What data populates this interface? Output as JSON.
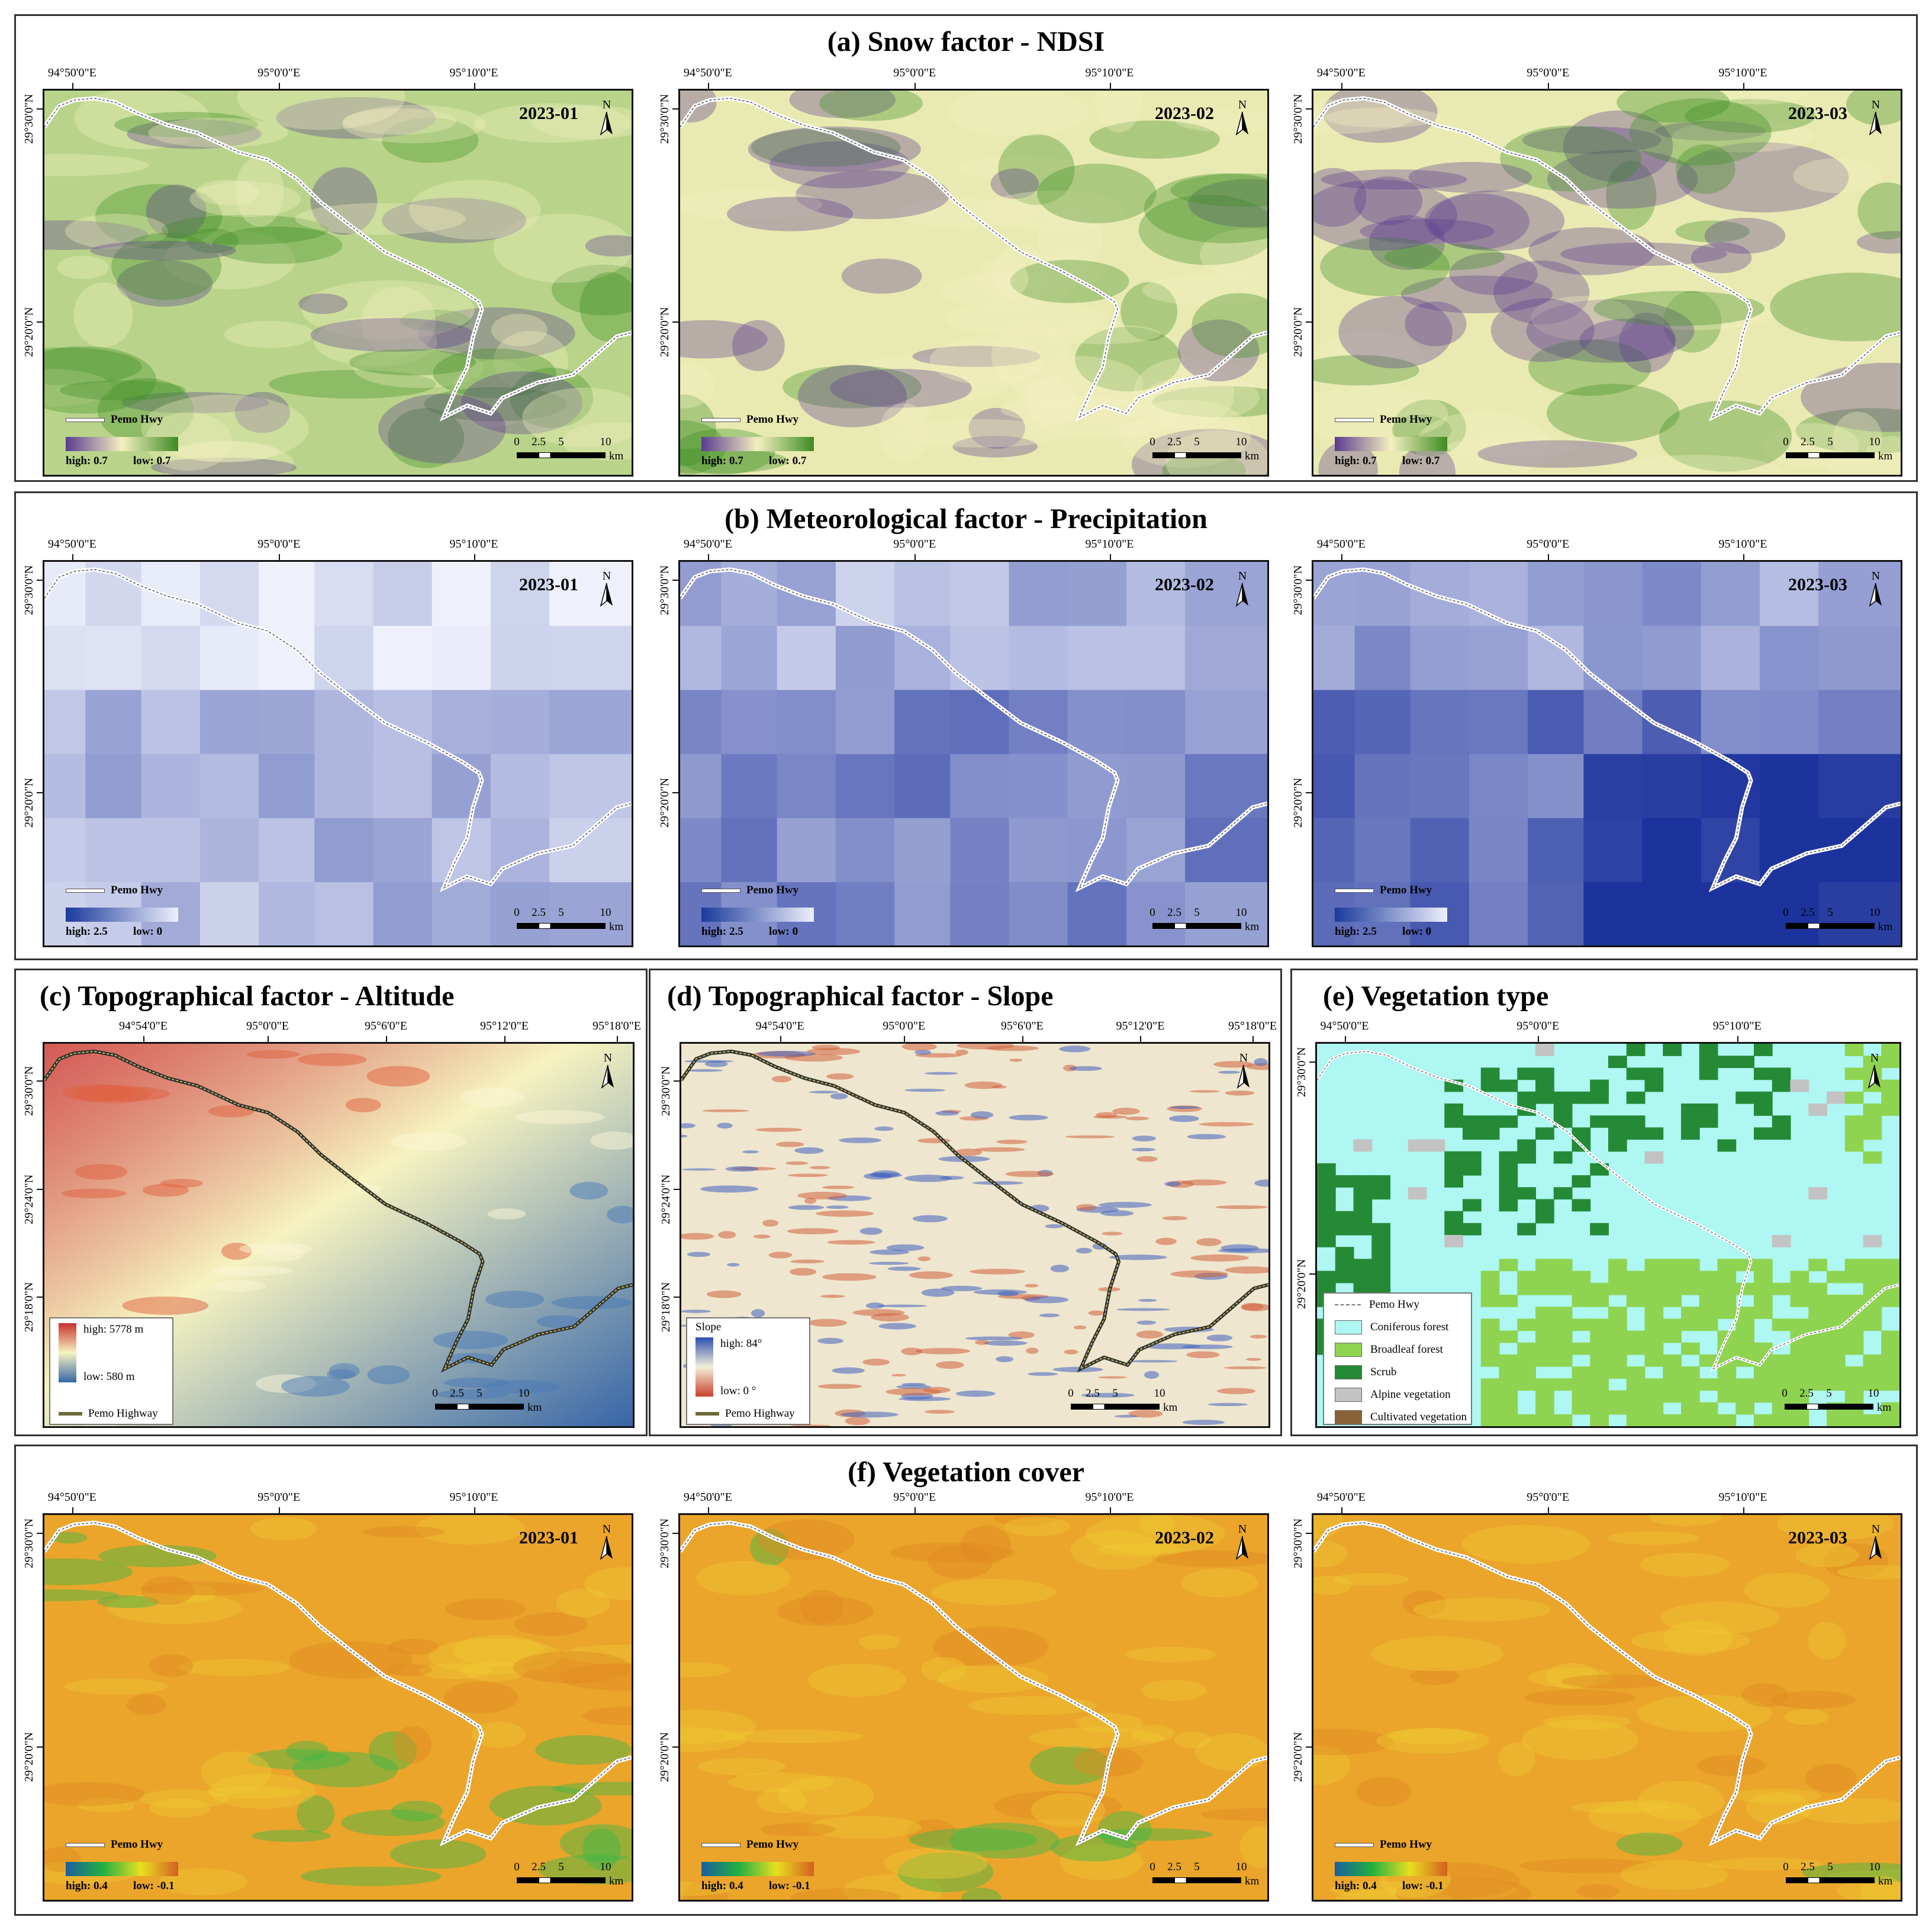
{
  "sections": {
    "a": {
      "title": "(a) Snow factor - NDSI"
    },
    "b": {
      "title": "(b) Meteorological factor - Precipitation"
    },
    "c": {
      "title": "(c) Topographical factor - Altitude"
    },
    "d": {
      "title": "(d) Topographical factor - Slope"
    },
    "e": {
      "title": "(e) Vegetation type"
    },
    "f": {
      "title": "(f) Vegetation cover"
    }
  },
  "common": {
    "lon_labels": [
      "94°50'0\"E",
      "95°0'0\"E",
      "95°10'0\"E"
    ],
    "lat_labels": [
      "29°30'0\"N",
      "29°20'0\"N"
    ],
    "lon_labels_fine": [
      "94°54'0\"E",
      "95°0'0\"E",
      "95°6'0\"E",
      "95°12'0\"E",
      "95°18'0\"E"
    ],
    "lat_labels_fine": [
      "29°30'0\"N",
      "29°24'0\"N",
      "29°18'0\"N"
    ],
    "north": "N",
    "road_short": "Pemo Hwy",
    "road_long": "Pemo Highway",
    "scale_ticks": [
      "0",
      "2.5",
      "5",
      "10"
    ],
    "scale_unit": "km",
    "dates": [
      "2023-01",
      "2023-02",
      "2023-03"
    ]
  },
  "legends": {
    "ndsi": {
      "high": "high: 0.7",
      "low": "low: 0.7",
      "colors": [
        "#5b3c8f",
        "#f4f0c0",
        "#3d8b22"
      ]
    },
    "precip": {
      "high": "high: 2.5",
      "low": "low: 0",
      "colors": [
        "#1a3a9c",
        "#eef0fb"
      ]
    },
    "altitude": {
      "high": "high: 5778 m",
      "low": "low:  580 m",
      "colors": [
        "#c9312b",
        "#f6f3c0",
        "#3766a8"
      ]
    },
    "slope": {
      "title": "Slope",
      "high": "high: 84°",
      "low": "low:  0 °",
      "colors": [
        "#2e4fb0",
        "#f4efd8",
        "#c9412b"
      ]
    },
    "cover": {
      "high": "high: 0.4",
      "low": "low: -0.1",
      "colors": [
        "#1a5fa0",
        "#22b040",
        "#e8e020",
        "#d45f20"
      ]
    },
    "vegtype": {
      "items": [
        {
          "label": "Coniferous forest",
          "color": "#aef7f3"
        },
        {
          "label": "Broadleaf forest",
          "color": "#8fd450"
        },
        {
          "label": "Scrub",
          "color": "#258a36"
        },
        {
          "label": "Alpine vegetation",
          "color": "#c3c3c3"
        },
        {
          "label": "Cultivated vegetation",
          "color": "#8a6238"
        }
      ]
    }
  }
}
